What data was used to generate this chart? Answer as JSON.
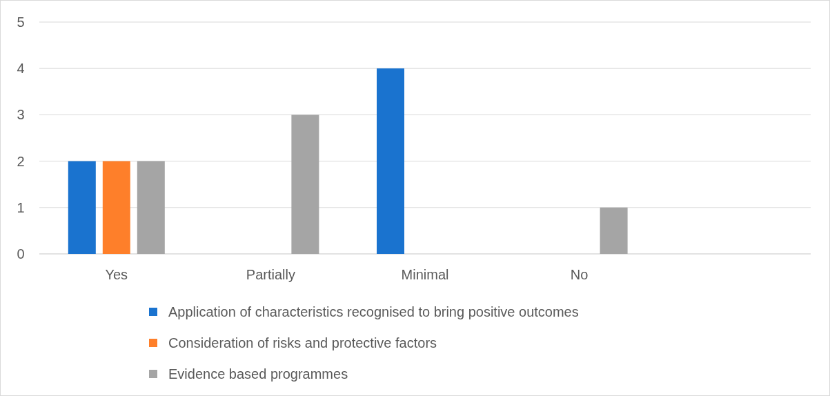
{
  "chart_data": {
    "type": "bar",
    "categories": [
      "Yes",
      "Partially",
      "Minimal",
      "No",
      null
    ],
    "series": [
      {
        "name": "Application of characteristics recognised to bring positive outcomes",
        "color": "#1a73cf",
        "values": [
          2,
          0,
          4,
          0,
          null
        ]
      },
      {
        "name": "Consideration of risks and protective factors",
        "color": "#fe7f2a",
        "values": [
          2,
          0,
          0,
          0,
          null
        ]
      },
      {
        "name": "Evidence based programmes",
        "color": "#a5a5a5",
        "values": [
          2,
          3,
          0,
          1,
          null
        ]
      }
    ],
    "ylim": [
      0,
      5
    ],
    "yticks": [
      0,
      1,
      2,
      3,
      4,
      5
    ],
    "grid": "y",
    "legend": "bottom"
  }
}
